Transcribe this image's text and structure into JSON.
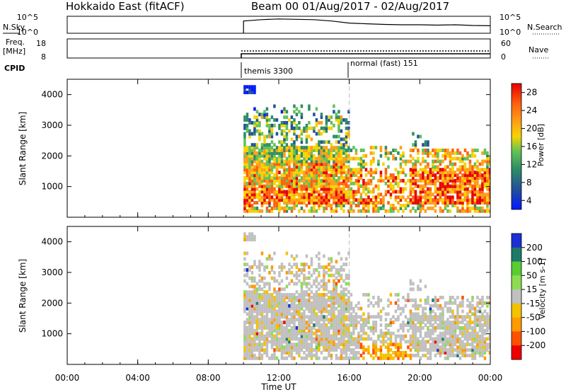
{
  "chart_data": [
    {
      "type": "line",
      "title": "Hokkaido East (fitACF)",
      "subtitle": "Beam 00 01/Aug/2017 - 02/Aug/2017",
      "left_label": "N.Sky",
      "right_label": "N.Search",
      "left_ticks": [
        "10^5",
        "10^0"
      ],
      "right_ticks": [
        "10^5",
        "10^0"
      ],
      "x": [
        "10:00",
        "11:00",
        "12:00",
        "13:00",
        "14:00",
        "15:00",
        "16:00",
        "17:00",
        "18:00",
        "19:00",
        "20:00",
        "21:00",
        "22:00",
        "23:00",
        "24:00"
      ],
      "series": [
        {
          "values": [
            3.6,
            4.0,
            4.2,
            4.1,
            4.0,
            3.6,
            3.0,
            2.8,
            2.6,
            2.5,
            2.5,
            2.4,
            2.5,
            2.3,
            2.2
          ]
        }
      ],
      "ylim": [
        0,
        5
      ]
    },
    {
      "type": "line",
      "left_label_top": "Freq.",
      "left_label_bottom": "[MHz]",
      "right_label": "Nave",
      "left_ticks": [
        "18",
        "8"
      ],
      "right_ticks": [
        "60",
        "0"
      ],
      "x": [
        "10:00",
        "24:00"
      ],
      "series": [
        {
          "values": [
            11,
            11
          ]
        }
      ],
      "ylim": [
        8,
        18
      ]
    },
    {
      "type": "table",
      "label": "CPID",
      "entries": [
        {
          "start": "10:00",
          "text": "themis 3300"
        },
        {
          "start": "16:00",
          "text": "normal (fast) 151"
        }
      ]
    },
    {
      "type": "heatmap",
      "ylabel": "Slant Range [km]",
      "yticks": [
        1000,
        2000,
        3000,
        4000
      ],
      "ylim": [
        0,
        4500
      ],
      "colorbar": {
        "label": "Power [dB]",
        "ticks": [
          "4",
          "8",
          "12",
          "16",
          "20",
          "24",
          "28"
        ]
      },
      "colors": [
        "#0018ff",
        "#23509a",
        "#2e8d64",
        "#61c257",
        "#f6d300",
        "#ff9e17",
        "#ff6010",
        "#e50000"
      ]
    },
    {
      "type": "heatmap",
      "ylabel": "Slant Range [km]",
      "yticks": [
        1000,
        2000,
        3000,
        4000
      ],
      "ylim": [
        0,
        4500
      ],
      "xlabel": "Time UT",
      "xticks": [
        "00:00",
        "04:00",
        "08:00",
        "12:00",
        "16:00",
        "20:00",
        "00:00"
      ],
      "colorbar": {
        "label": "Velocity [m s-1]",
        "ticks": [
          "200",
          "100",
          "50",
          "15",
          "-15",
          "-50",
          "-100",
          "-200"
        ]
      },
      "colors": [
        "#1b2fd4",
        "#1f7a68",
        "#58cd31",
        "#8cdd52",
        "#c0c0c0",
        "#f3c200",
        "#ff9a00",
        "#ff5000",
        "#ee0000"
      ]
    }
  ]
}
